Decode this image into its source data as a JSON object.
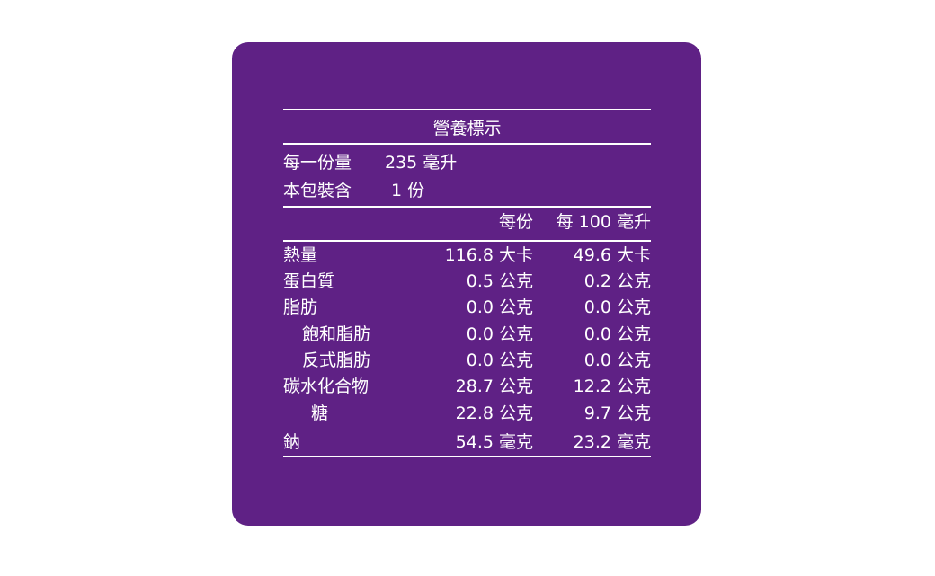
{
  "title": "營養標示",
  "serving_size": {
    "label": "每一份量",
    "value": "235 毫升"
  },
  "servings_per_package": {
    "label": "本包裝含",
    "value": "1 份"
  },
  "columns": [
    "每份",
    "每 100 毫升"
  ],
  "rows": [
    [
      "熱量",
      "116.8 大卡",
      "49.6 大卡"
    ],
    [
      "蛋白質",
      "0.5 公克",
      "0.2 公克"
    ],
    [
      "脂肪",
      "0.0 公克",
      "0.0 公克"
    ],
    [
      "飽和脂肪",
      "0.0 公克",
      "0.0 公克"
    ],
    [
      "反式脂肪",
      "0.0 公克",
      "0.0 公克"
    ],
    [
      "碳水化合物",
      "28.7 公克",
      "12.2 公克"
    ],
    [
      "糖",
      "22.8 公克",
      "9.7 公克"
    ],
    [
      "鈉",
      "54.5 毫克",
      "23.2 毫克"
    ]
  ]
}
